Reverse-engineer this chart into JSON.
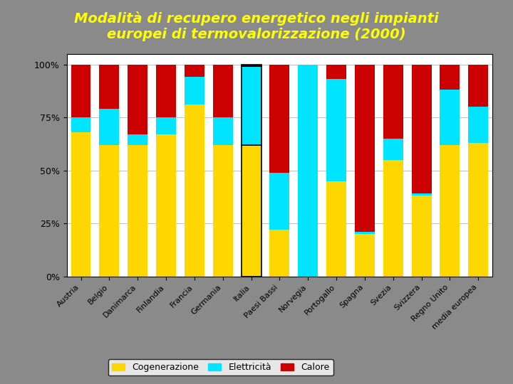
{
  "categories": [
    "Austria",
    "Belgio",
    "Danimarca",
    "Finlandia",
    "Francia",
    "Germania",
    "Italia",
    "Paesi Bassi",
    "Norvegia",
    "Portogallo",
    "Spagna",
    "Svezia",
    "Svizzera",
    "Regno Unito",
    "media europea"
  ],
  "cogenerazione": [
    68,
    62,
    62,
    67,
    81,
    62,
    62,
    22,
    0,
    45,
    20,
    55,
    38,
    62,
    63
  ],
  "elettricita": [
    7,
    17,
    5,
    8,
    13,
    13,
    37,
    27,
    100,
    48,
    1,
    10,
    1,
    26,
    17
  ],
  "calore": [
    25,
    21,
    33,
    25,
    6,
    25,
    1,
    51,
    0,
    7,
    79,
    35,
    61,
    12,
    20
  ],
  "color_cogen": "#FFD700",
  "color_elet": "#00E5FF",
  "color_calore": "#CC0000",
  "title_line1": "Modalità di recupero energetico negli impianti",
  "title_line2": "europei di termovalorizzazione (2000)",
  "title_color": "#FFFF00",
  "bg_color": "#8A8A8A",
  "plot_bg": "#FFFFFF",
  "yticks": [
    0,
    25,
    50,
    75,
    100
  ],
  "ytick_labels": [
    "0%",
    "25%",
    "50%",
    "75%",
    "100%"
  ],
  "legend_labels": [
    "Cogenerazione",
    "Elettricità",
    "Calore"
  ],
  "title_fontsize": 14
}
